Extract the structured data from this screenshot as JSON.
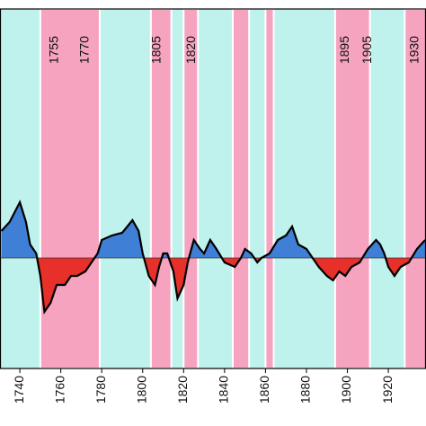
{
  "chart_data": {
    "type": "area",
    "annotations": [
      {
        "x": 1757,
        "text": "1755"
      },
      {
        "x": 1772,
        "text": "1770"
      },
      {
        "x": 1807,
        "text": "1805"
      },
      {
        "x": 1824,
        "text": "1820"
      },
      {
        "x": 1899,
        "text": "1895"
      },
      {
        "x": 1910,
        "text": "1905"
      },
      {
        "x": 1933,
        "text": "1930"
      }
    ],
    "bands": [
      [
        1750,
        1779
      ],
      [
        1804,
        1814
      ],
      [
        1820,
        1827
      ],
      [
        1844,
        1852
      ],
      [
        1860,
        1864
      ],
      [
        1894,
        1911
      ],
      [
        1928,
        1939
      ]
    ],
    "band_color": "#f5a3bf",
    "background_color": "#bff2ec",
    "x": [
      1731,
      1735,
      1740,
      1743,
      1745,
      1748,
      1750,
      1752,
      1755,
      1758,
      1762,
      1765,
      1768,
      1772,
      1775,
      1778,
      1780,
      1785,
      1790,
      1795,
      1798,
      1800,
      1803,
      1806,
      1808,
      1810,
      1812,
      1815,
      1817,
      1820,
      1822,
      1825,
      1828,
      1830,
      1833,
      1836,
      1840,
      1845,
      1848,
      1850,
      1853,
      1856,
      1858,
      1862,
      1866,
      1870,
      1873,
      1876,
      1880,
      1883,
      1886,
      1890,
      1893,
      1896,
      1899,
      1902,
      1906,
      1910,
      1914,
      1916,
      1918,
      1920,
      1923,
      1926,
      1930,
      1934,
      1938
    ],
    "series": [
      {
        "values": [
          0.3,
          0.4,
          0.62,
          0.4,
          0.15,
          0.05,
          -0.2,
          -0.6,
          -0.5,
          -0.3,
          -0.3,
          -0.2,
          -0.2,
          -0.15,
          -0.05,
          0.05,
          0.2,
          0.25,
          0.28,
          0.42,
          0.3,
          0.05,
          -0.2,
          -0.3,
          -0.1,
          0.05,
          0.05,
          -0.15,
          -0.45,
          -0.3,
          -0.05,
          0.2,
          0.1,
          0.05,
          0.2,
          0.1,
          -0.05,
          -0.1,
          0,
          0.1,
          0.05,
          -0.05,
          0,
          0.05,
          0.2,
          0.25,
          0.35,
          0.15,
          0.1,
          0,
          -0.1,
          -0.2,
          -0.25,
          -0.15,
          -0.2,
          -0.1,
          -0.05,
          0.1,
          0.2,
          0.15,
          0.05,
          -0.1,
          -0.2,
          -0.1,
          -0.05,
          0.1,
          0.2
        ],
        "positive_color": "#3f7fd6",
        "negative_color": "#e8302b"
      }
    ],
    "xlim": [
      1730.3,
      1938.4
    ],
    "ylim": [
      -1.23,
      2.77
    ],
    "xticks": [
      1740,
      1760,
      1780,
      1800,
      1820,
      1840,
      1860,
      1880,
      1900,
      1920
    ]
  }
}
